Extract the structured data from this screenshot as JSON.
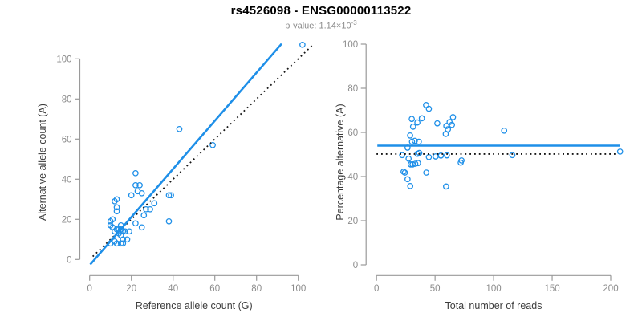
{
  "header": {
    "title": "rs4526098 - ENSG00000113522",
    "subtitle_base": "p-value: 1.14×10",
    "subtitle_exponent": "-3"
  },
  "colors": {
    "title": "#000000",
    "subtitle": "#8c8c8c",
    "point": "#1E8FE8",
    "fit_line": "#1E8FE8",
    "reference_line": "#151515",
    "axis": "#9a9a9a",
    "tick_label": "#8c8c8c",
    "axis_title": "#3d3d3d"
  },
  "chart_data": [
    {
      "type": "scatter",
      "panel": "left",
      "xlabel": "Reference allele count (G)",
      "ylabel": "Alternative allele count (A)",
      "xticks": [
        0,
        20,
        40,
        60,
        80,
        100
      ],
      "yticks": [
        0,
        20,
        40,
        60,
        80,
        100
      ],
      "xlim": [
        0,
        103
      ],
      "ylim": [
        -4,
        108
      ],
      "grid": false,
      "legend": false,
      "points": [
        [
          102,
          107
        ],
        [
          43,
          65
        ],
        [
          59,
          57
        ],
        [
          22,
          43
        ],
        [
          22,
          37
        ],
        [
          24,
          37
        ],
        [
          23,
          34
        ],
        [
          25,
          33
        ],
        [
          20,
          32
        ],
        [
          38,
          32
        ],
        [
          39,
          32
        ],
        [
          31,
          28
        ],
        [
          27,
          25
        ],
        [
          29,
          25
        ],
        [
          12,
          29
        ],
        [
          13,
          30
        ],
        [
          13,
          26
        ],
        [
          13,
          24
        ],
        [
          26,
          22
        ],
        [
          11,
          20
        ],
        [
          10,
          19
        ],
        [
          38,
          19
        ],
        [
          22,
          18
        ],
        [
          15,
          17
        ],
        [
          10,
          17
        ],
        [
          11,
          16
        ],
        [
          25,
          16
        ],
        [
          14,
          15
        ],
        [
          13,
          15
        ],
        [
          15,
          15
        ],
        [
          16,
          14
        ],
        [
          17,
          14
        ],
        [
          19,
          14
        ],
        [
          12,
          14
        ],
        [
          14,
          13
        ],
        [
          15,
          12
        ],
        [
          16,
          10
        ],
        [
          18,
          10
        ],
        [
          12,
          9
        ],
        [
          13,
          8
        ],
        [
          15,
          8
        ],
        [
          16,
          8
        ],
        [
          10,
          8
        ]
      ],
      "lines": [
        {
          "name": "fit-line",
          "style": "solid",
          "from": [
            0.3,
            -2.5
          ],
          "to": [
            92,
            107.5
          ]
        },
        {
          "name": "identity-line",
          "style": "dotted",
          "from": [
            1.5,
            1.5
          ],
          "to": [
            106.5,
            106.5
          ]
        }
      ]
    },
    {
      "type": "scatter",
      "panel": "right",
      "xlabel": "Total number of reads",
      "ylabel": "Percentage alternative (A)",
      "xticks": [
        0,
        50,
        100,
        150,
        200
      ],
      "yticks": [
        0,
        20,
        40,
        60,
        80,
        100
      ],
      "xlim": [
        0,
        210
      ],
      "ylim": [
        0,
        100
      ],
      "grid": false,
      "legend": false,
      "points": [
        [
          208,
          51.3
        ],
        [
          116,
          49.7
        ],
        [
          109,
          60.8
        ],
        [
          72.6,
          47.3
        ],
        [
          71.9,
          46.3
        ],
        [
          65.3,
          66.9
        ],
        [
          64.4,
          63.4
        ],
        [
          62.4,
          64.7
        ],
        [
          61,
          61.4
        ],
        [
          60.1,
          49.6
        ],
        [
          59.6,
          62.9
        ],
        [
          59.1,
          59.3
        ],
        [
          59.4,
          35.5
        ],
        [
          55,
          49.5
        ],
        [
          51.9,
          64.1
        ],
        [
          50.5,
          49.1
        ],
        [
          44.7,
          70.7
        ],
        [
          44.7,
          48.8
        ],
        [
          42.5,
          41.8
        ],
        [
          42.3,
          72.4
        ],
        [
          38.7,
          66.4
        ],
        [
          36.5,
          50.7
        ],
        [
          36.1,
          55.8
        ],
        [
          35.4,
          46.1
        ],
        [
          34.9,
          64.5
        ],
        [
          34.9,
          50.3
        ],
        [
          33.1,
          45.8
        ],
        [
          32.7,
          56.2
        ],
        [
          31.2,
          62.6
        ],
        [
          30.8,
          45.5
        ],
        [
          30.3,
          55.8
        ],
        [
          30.1,
          66.1
        ],
        [
          29.2,
          45.5
        ],
        [
          28.8,
          35.7
        ],
        [
          28.7,
          58.6
        ],
        [
          27.4,
          48.1
        ],
        [
          26.5,
          53.1
        ],
        [
          26.5,
          38.8
        ],
        [
          24.2,
          41.8
        ],
        [
          23.1,
          42.2
        ],
        [
          21.9,
          49.7
        ]
      ],
      "lines": [
        {
          "name": "fit-line",
          "style": "solid",
          "from": [
            0.7,
            54
          ],
          "to": [
            208,
            54
          ]
        },
        {
          "name": "identity-line",
          "style": "dotted",
          "from": [
            0,
            50.2
          ],
          "to": [
            205,
            50.2
          ]
        }
      ]
    }
  ]
}
